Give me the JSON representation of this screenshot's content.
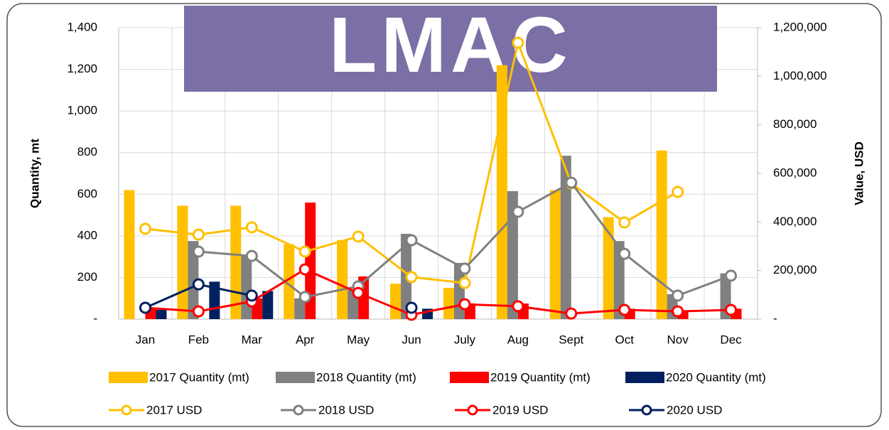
{
  "chart_data": {
    "type": "bar-line",
    "logo": "LMAC",
    "categories": [
      "Jan",
      "Feb",
      "Mar",
      "Apr",
      "May",
      "Jun",
      "July",
      "Aug",
      "Sept",
      "Oct",
      "Nov",
      "Dec"
    ],
    "ylabel": "Quantity, mt",
    "y2label": "Value, USD",
    "ylim": [
      0,
      1400
    ],
    "yticks": [
      {
        "value": 0,
        "label": "-"
      },
      200,
      400,
      600,
      800,
      {
        "value": 1000,
        "label": "1,000"
      },
      {
        "value": 1200,
        "label": "1,200"
      },
      {
        "value": 1400,
        "label": "1,400"
      }
    ],
    "y2lim": [
      0,
      1200000
    ],
    "y2ticks": [
      {
        "value": 0,
        "label": "-"
      },
      {
        "value": 200000,
        "label": "200,000"
      },
      {
        "value": 400000,
        "label": "400,000"
      },
      {
        "value": 600000,
        "label": "600,000"
      },
      {
        "value": 800000,
        "label": "800,000"
      },
      {
        "value": 1000000,
        "label": "1,000,000"
      },
      {
        "value": 1200000,
        "label": "1,200,000"
      }
    ],
    "grid": true,
    "series": [
      {
        "name": "2017 Quantity (mt)",
        "kind": "bar",
        "color": "#FFC000",
        "values": [
          620,
          545,
          545,
          360,
          380,
          170,
          150,
          1220,
          620,
          490,
          810,
          null
        ]
      },
      {
        "name": "2018 Quantity (mt)",
        "kind": "bar",
        "color": "#808080",
        "values": [
          null,
          375,
          310,
          100,
          140,
          410,
          270,
          615,
          785,
          375,
          120,
          220
        ]
      },
      {
        "name": "2019 Quantity (mt)",
        "kind": "bar",
        "color": "#FF0000",
        "values": [
          50,
          null,
          100,
          560,
          205,
          null,
          75,
          75,
          null,
          50,
          40,
          50
        ]
      },
      {
        "name": "2020 Quantity (mt)",
        "kind": "bar",
        "color": "#002060",
        "values": [
          45,
          180,
          135,
          null,
          null,
          50,
          null,
          null,
          null,
          null,
          null,
          null
        ]
      },
      {
        "name": "2017 USD",
        "kind": "line",
        "axis": "y2",
        "color": "#FFC000",
        "values": [
          372000,
          348000,
          378000,
          278000,
          340000,
          173000,
          149000,
          1138000,
          559000,
          398000,
          524000,
          null
        ]
      },
      {
        "name": "2018 USD",
        "kind": "line",
        "axis": "y2",
        "color": "#808080",
        "values": [
          null,
          278000,
          260000,
          91000,
          135000,
          325000,
          208000,
          442000,
          562000,
          269000,
          97000,
          179000
        ]
      },
      {
        "name": "2019 USD",
        "kind": "line",
        "axis": "y2",
        "color": "#FF0000",
        "values": [
          47000,
          32000,
          73000,
          205000,
          108000,
          18000,
          61000,
          53000,
          23000,
          38000,
          32000,
          38000
        ]
      },
      {
        "name": "2020 USD",
        "kind": "line",
        "axis": "y2",
        "color": "#002060",
        "values": [
          47000,
          143000,
          97000,
          null,
          null,
          47000,
          null,
          null,
          null,
          null,
          null,
          null
        ]
      }
    ]
  }
}
